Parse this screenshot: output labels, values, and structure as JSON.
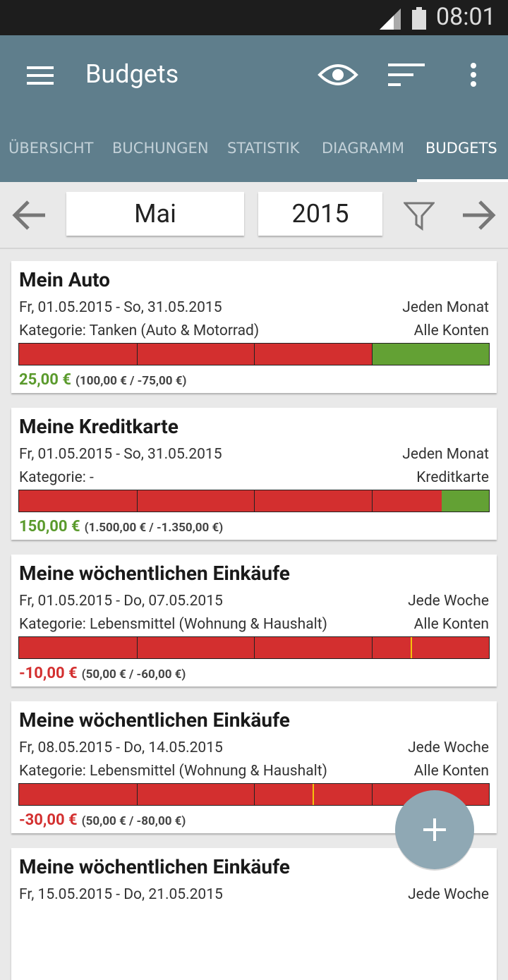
{
  "status_bar": {
    "time": "08:01"
  },
  "app_bar": {
    "title": "Budgets"
  },
  "tabs": [
    {
      "label": "ÜBERSICHT",
      "active": false
    },
    {
      "label": "BUCHUNGEN",
      "active": false
    },
    {
      "label": "STATISTIK",
      "active": false
    },
    {
      "label": "DIAGRAMM",
      "active": false
    },
    {
      "label": "BUDGETS",
      "active": true
    }
  ],
  "selector": {
    "month": "Mai",
    "year": "2015"
  },
  "budgets": {
    "items": [
      {
        "name": "Mein Auto",
        "period": "Fr, 01.05.2015 - So, 31.05.2015",
        "recurrence": "Jeden Monat",
        "category": "Kategorie: Tanken (Auto & Motorrad)",
        "account": "Alle Konten",
        "remaining": {
          "value": 25,
          "label": "25,00 €"
        },
        "detail": "(100,00 € / -75,00 €)",
        "budget": 100,
        "spent": -75
      },
      {
        "name": "Meine Kreditkarte",
        "period": "Fr, 01.05.2015 - So, 31.05.2015",
        "recurrence": "Jeden Monat",
        "category": "Kategorie: -",
        "account": "Kreditkarte",
        "remaining": {
          "value": 150,
          "label": "150,00 €"
        },
        "detail": "(1.500,00 € / -1.350,00 €)",
        "budget": 1500,
        "spent": -1350
      },
      {
        "name": "Meine wöchentlichen Einkäufe",
        "period": "Fr, 01.05.2015 - Do, 07.05.2015",
        "recurrence": "Jede Woche",
        "category": "Kategorie: Lebensmittel (Wohnung & Haushalt)",
        "account": "Alle Konten",
        "remaining": {
          "value": -10,
          "label": "-10,00 €"
        },
        "detail": "(50,00 € / -60,00 €)",
        "budget": 50,
        "spent": -60
      },
      {
        "name": "Meine wöchentlichen Einkäufe",
        "period": "Fr, 08.05.2015 - Do, 14.05.2015",
        "recurrence": "Jede Woche",
        "category": "Kategorie: Lebensmittel (Wohnung & Haushalt)",
        "account": "Alle Konten",
        "remaining": {
          "value": -30,
          "label": "-30,00 €"
        },
        "detail": "(50,00 € / -80,00 €)",
        "budget": 50,
        "spent": -80
      },
      {
        "name": "Meine wöchentlichen Einkäufe",
        "period": "Fr, 15.05.2015 - Do, 21.05.2015",
        "recurrence": "Jede Woche"
      }
    ]
  }
}
